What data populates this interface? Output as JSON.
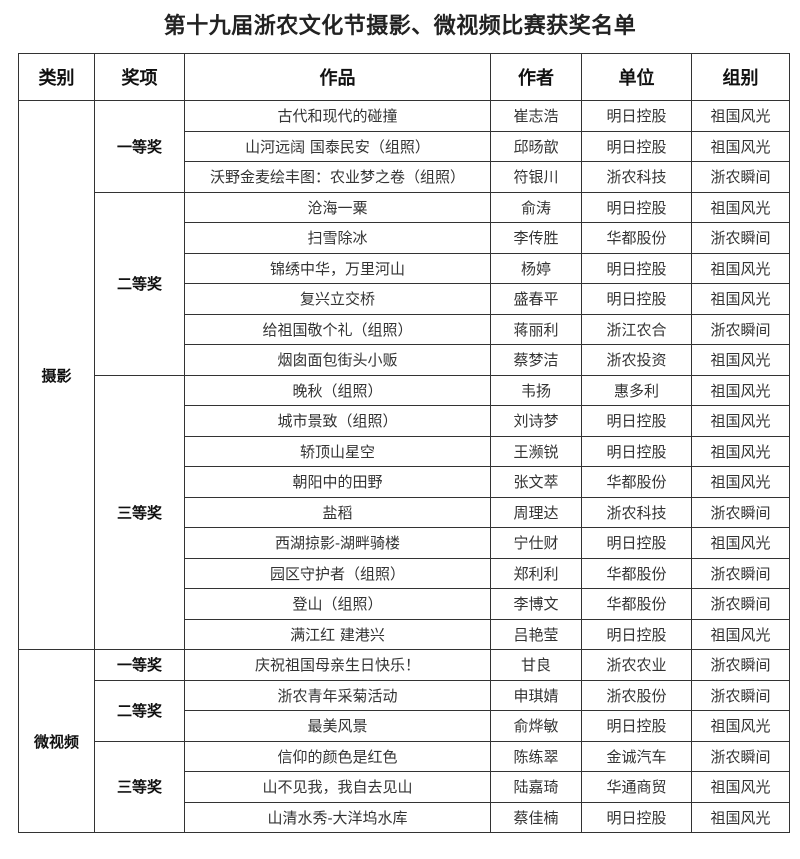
{
  "title": "第十九届浙农文化节摄影、微视频比赛获奖名单",
  "headers": [
    "类别",
    "奖项",
    "作品",
    "作者",
    "单位",
    "组别"
  ],
  "categories": [
    {
      "name": "摄影",
      "awards": [
        {
          "name": "一等奖",
          "rows": [
            [
              "古代和现代的碰撞",
              "崔志浩",
              "明日控股",
              "祖国风光"
            ],
            [
              "山河远阔 国泰民安（组照）",
              "邱旸歆",
              "明日控股",
              "祖国风光"
            ],
            [
              "沃野金麦绘丰图：农业梦之卷（组照）",
              "符银川",
              "浙农科技",
              "浙农瞬间"
            ]
          ]
        },
        {
          "name": "二等奖",
          "rows": [
            [
              "沧海一粟",
              "俞涛",
              "明日控股",
              "祖国风光"
            ],
            [
              "扫雪除冰",
              "李传胜",
              "华都股份",
              "浙农瞬间"
            ],
            [
              "锦绣中华，万里河山",
              "杨婷",
              "明日控股",
              "祖国风光"
            ],
            [
              "复兴立交桥",
              "盛春平",
              "明日控股",
              "祖国风光"
            ],
            [
              "给祖国敬个礼（组照）",
              "蒋丽利",
              "浙江农合",
              "浙农瞬间"
            ],
            [
              "烟囱面包街头小贩",
              "蔡梦洁",
              "浙农投资",
              "祖国风光"
            ]
          ]
        },
        {
          "name": "三等奖",
          "rows": [
            [
              "晚秋（组照）",
              "韦扬",
              "惠多利",
              "祖国风光"
            ],
            [
              "城市景致（组照）",
              "刘诗梦",
              "明日控股",
              "祖国风光"
            ],
            [
              "轿顶山星空",
              "王濒锐",
              "明日控股",
              "祖国风光"
            ],
            [
              "朝阳中的田野",
              "张文萃",
              "华都股份",
              "祖国风光"
            ],
            [
              "盐稻",
              "周理达",
              "浙农科技",
              "浙农瞬间"
            ],
            [
              "西湖掠影-湖畔骑楼",
              "宁仕财",
              "明日控股",
              "祖国风光"
            ],
            [
              "园区守护者（组照）",
              "郑利利",
              "华都股份",
              "浙农瞬间"
            ],
            [
              "登山（组照）",
              "李博文",
              "华都股份",
              "浙农瞬间"
            ],
            [
              "满江红 建港兴",
              "吕艳莹",
              "明日控股",
              "祖国风光"
            ]
          ]
        }
      ]
    },
    {
      "name": "微视频",
      "awards": [
        {
          "name": "一等奖",
          "rows": [
            [
              "庆祝祖国母亲生日快乐！",
              "甘良",
              "浙农农业",
              "浙农瞬间"
            ]
          ]
        },
        {
          "name": "二等奖",
          "rows": [
            [
              "浙农青年采菊活动",
              "申琪婧",
              "浙农股份",
              "浙农瞬间"
            ],
            [
              "最美风景",
              "俞烨敏",
              "明日控股",
              "祖国风光"
            ]
          ]
        },
        {
          "name": "三等奖",
          "rows": [
            [
              "信仰的颜色是红色",
              "陈练翠",
              "金诚汽车",
              "浙农瞬间"
            ],
            [
              "山不见我，我自去见山",
              "陆嘉琦",
              "华通商贸",
              "祖国风光"
            ],
            [
              "山清水秀-大洋坞水库",
              "蔡佳楠",
              "明日控股",
              "祖国风光"
            ]
          ]
        }
      ]
    }
  ]
}
